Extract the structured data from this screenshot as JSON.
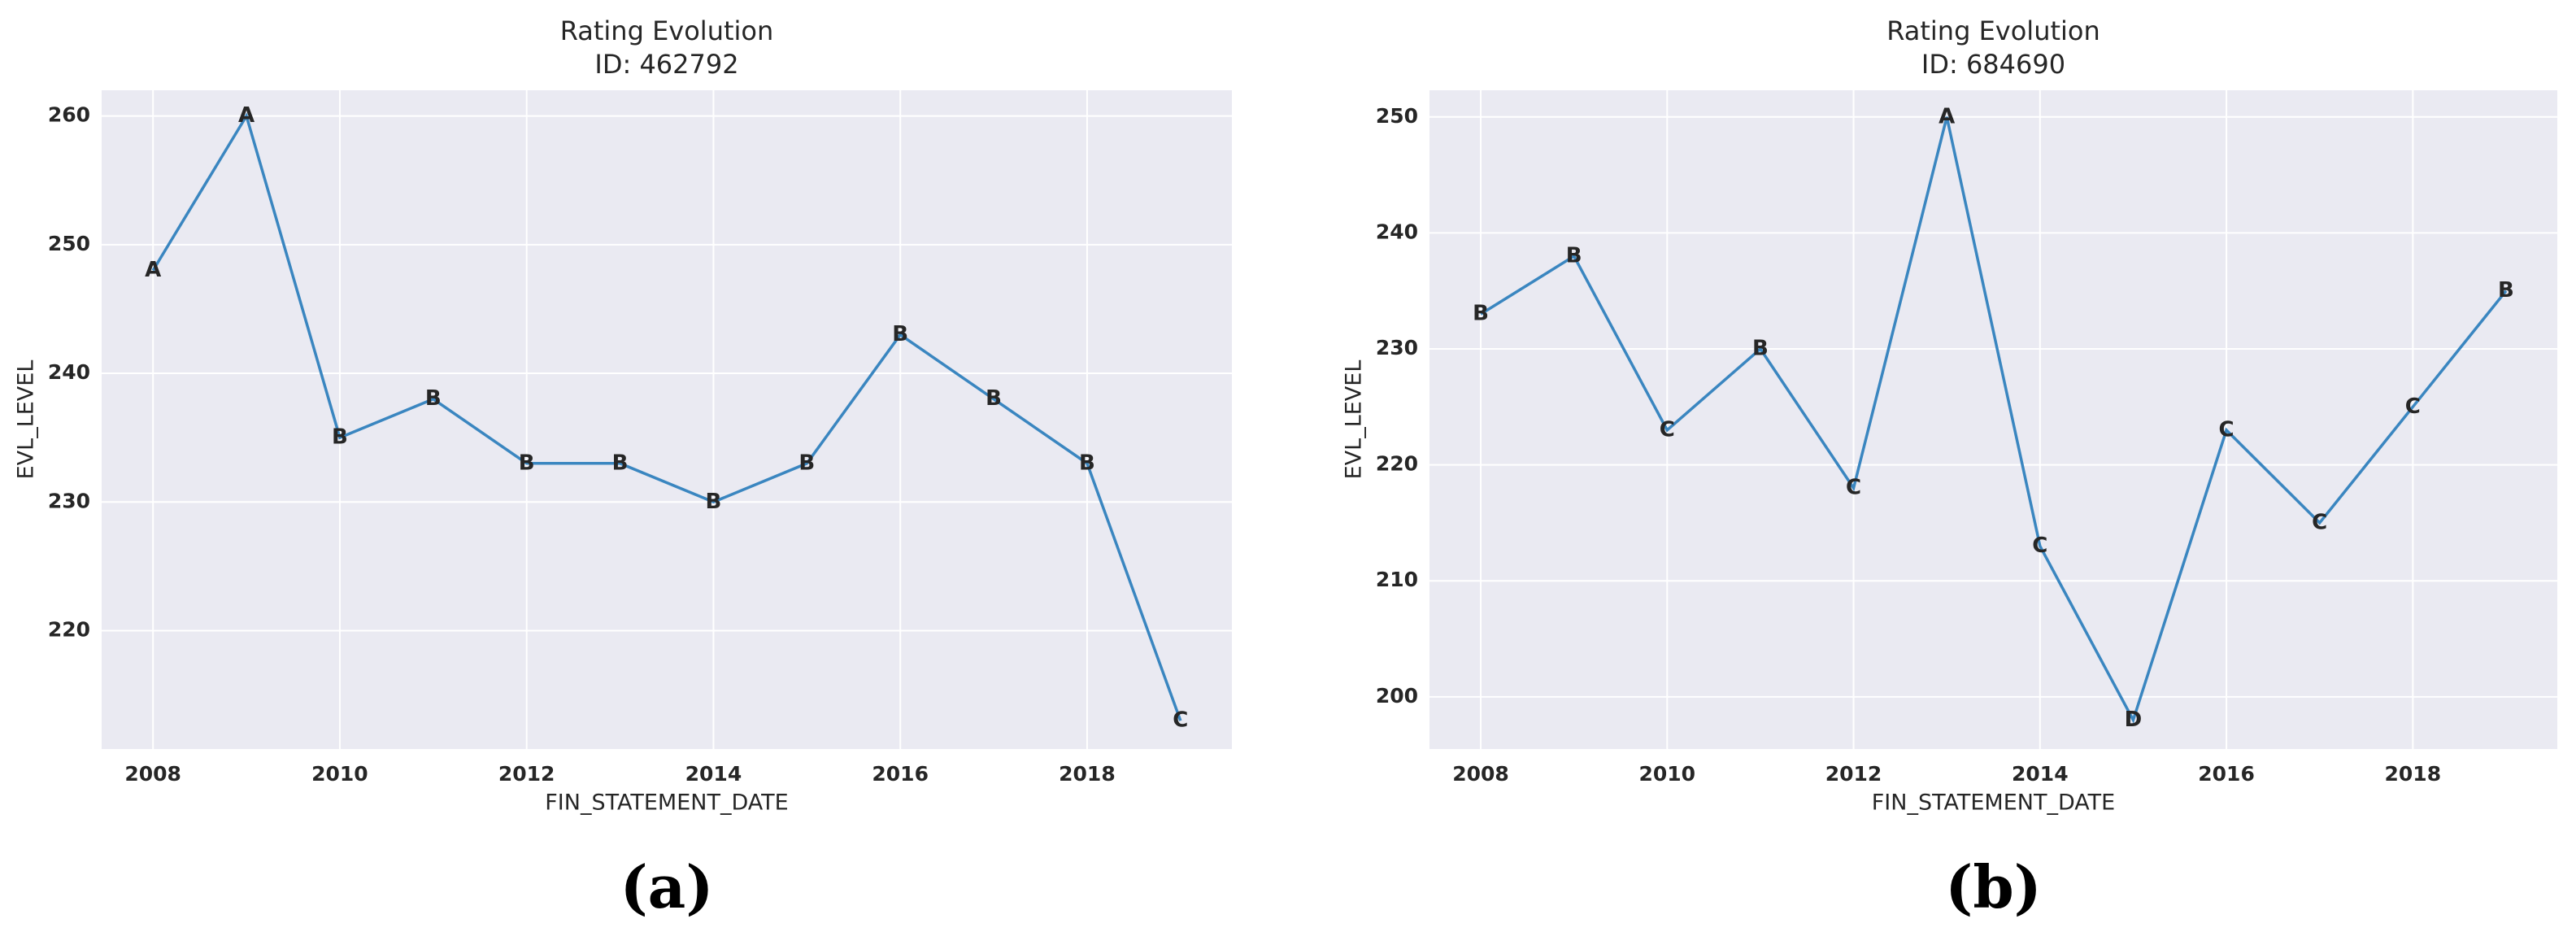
{
  "chart_data": [
    {
      "type": "line",
      "title": "Rating Evolution",
      "subtitle": "ID: 462792",
      "caption": "(a)",
      "x_label": "FIN_STATEMENT_DATE",
      "y_label": "EVL_LEVEL",
      "x": [
        2008,
        2009,
        2010,
        2011,
        2012,
        2013,
        2014,
        2015,
        2016,
        2017,
        2018,
        2019
      ],
      "series": [
        {
          "color": "#3a86c0",
          "values": [
            248,
            260,
            235,
            238,
            233,
            233,
            230,
            233,
            243,
            238,
            233,
            213
          ],
          "point_labels": [
            "A",
            "A",
            "B",
            "B",
            "B",
            "B",
            "B",
            "B",
            "B",
            "B",
            "B",
            "C"
          ]
        }
      ],
      "xlim": [
        2007.45,
        2019.55
      ],
      "ylim": [
        210.8,
        262
      ],
      "xticks": [
        2008,
        2010,
        2012,
        2014,
        2016,
        2018
      ],
      "yticks": [
        220,
        230,
        240,
        250,
        260
      ],
      "grid": true
    },
    {
      "type": "line",
      "title": "Rating Evolution",
      "subtitle": "ID: 684690",
      "caption": "(b)",
      "x_label": "FIN_STATEMENT_DATE",
      "y_label": "EVL_LEVEL",
      "x": [
        2008,
        2009,
        2010,
        2011,
        2012,
        2013,
        2014,
        2015,
        2016,
        2017,
        2018,
        2019
      ],
      "series": [
        {
          "color": "#3a86c0",
          "values": [
            233,
            238,
            223,
            230,
            218,
            250,
            213,
            198,
            223,
            215,
            225,
            235
          ],
          "point_labels": [
            "B",
            "B",
            "C",
            "B",
            "C",
            "A",
            "C",
            "D",
            "C",
            "C",
            "C",
            "B"
          ]
        }
      ],
      "xlim": [
        2007.45,
        2019.55
      ],
      "ylim": [
        195.5,
        252.3
      ],
      "xticks": [
        2008,
        2010,
        2012,
        2014,
        2016,
        2018
      ],
      "yticks": [
        200,
        210,
        220,
        230,
        240,
        250
      ],
      "grid": true
    }
  ]
}
